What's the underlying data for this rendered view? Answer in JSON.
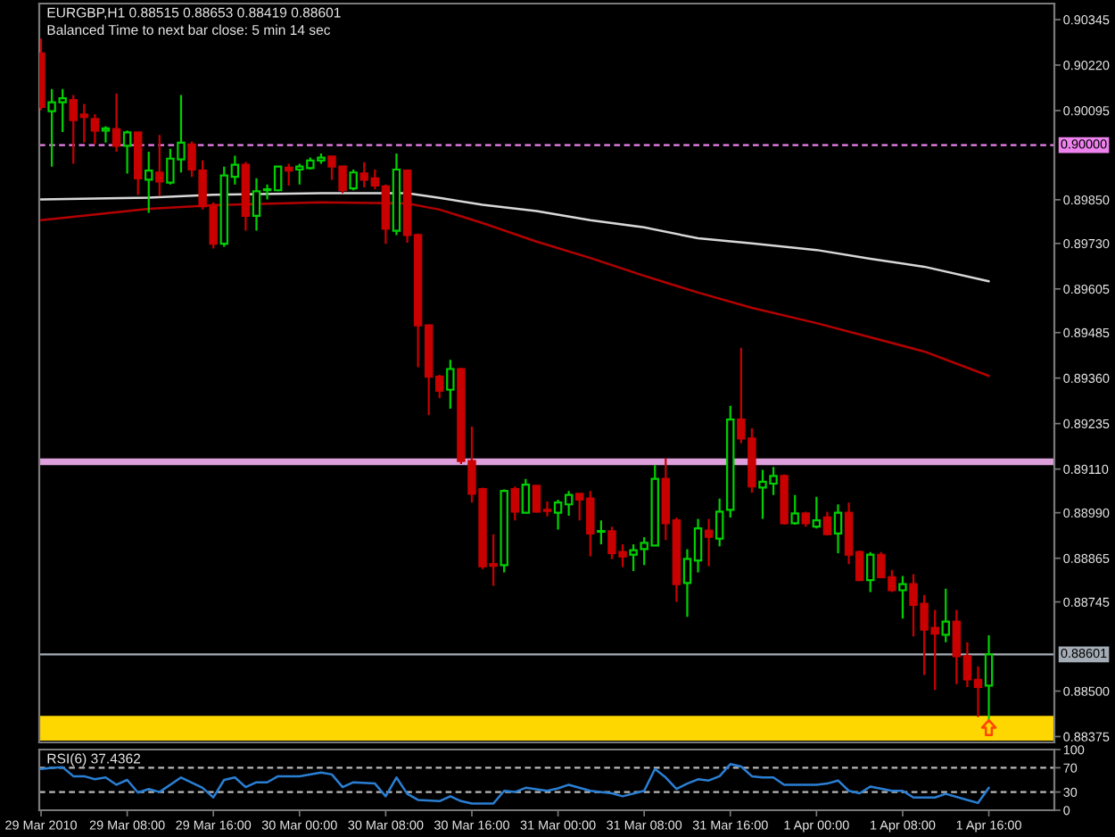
{
  "chart_data": [
    {
      "type": "candlestick",
      "title": "EURGBP,H1 0.88515 0.88653 0.88419 0.88601",
      "subtitle": "Balanced Time to next bar close: 5 min 14 sec",
      "x": [
        "2010-03-29T00:00",
        "2010-03-29T01:00",
        "2010-03-29T02:00",
        "2010-03-29T03:00",
        "2010-03-29T04:00",
        "2010-03-29T05:00",
        "2010-03-29T06:00",
        "2010-03-29T07:00",
        "2010-03-29T08:00",
        "2010-03-29T09:00",
        "2010-03-29T10:00",
        "2010-03-29T11:00",
        "2010-03-29T12:00",
        "2010-03-29T13:00",
        "2010-03-29T14:00",
        "2010-03-29T15:00",
        "2010-03-29T16:00",
        "2010-03-29T17:00",
        "2010-03-29T18:00",
        "2010-03-29T19:00",
        "2010-03-29T20:00",
        "2010-03-29T21:00",
        "2010-03-29T22:00",
        "2010-03-29T23:00",
        "2010-03-30T00:00",
        "2010-03-30T01:00",
        "2010-03-30T02:00",
        "2010-03-30T03:00",
        "2010-03-30T04:00",
        "2010-03-30T05:00",
        "2010-03-30T06:00",
        "2010-03-30T07:00",
        "2010-03-30T08:00",
        "2010-03-30T09:00",
        "2010-03-30T10:00",
        "2010-03-30T11:00",
        "2010-03-30T12:00",
        "2010-03-30T13:00",
        "2010-03-30T14:00",
        "2010-03-30T15:00",
        "2010-03-30T16:00",
        "2010-03-30T17:00",
        "2010-03-30T18:00",
        "2010-03-30T19:00",
        "2010-03-30T20:00",
        "2010-03-30T21:00",
        "2010-03-30T22:00",
        "2010-03-30T23:00",
        "2010-03-31T00:00",
        "2010-03-31T01:00",
        "2010-03-31T02:00",
        "2010-03-31T03:00",
        "2010-03-31T04:00",
        "2010-03-31T05:00",
        "2010-03-31T06:00",
        "2010-03-31T07:00",
        "2010-03-31T08:00",
        "2010-03-31T09:00",
        "2010-03-31T10:00",
        "2010-03-31T11:00",
        "2010-03-31T12:00",
        "2010-03-31T13:00",
        "2010-03-31T14:00",
        "2010-03-31T15:00",
        "2010-03-31T16:00",
        "2010-03-31T17:00",
        "2010-03-31T18:00",
        "2010-03-31T19:00",
        "2010-03-31T20:00",
        "2010-03-31T21:00",
        "2010-03-31T22:00",
        "2010-03-31T23:00",
        "2010-04-01T00:00",
        "2010-04-01T01:00",
        "2010-04-01T02:00",
        "2010-04-01T03:00",
        "2010-04-01T04:00",
        "2010-04-01T05:00",
        "2010-04-01T06:00",
        "2010-04-01T07:00",
        "2010-04-01T08:00",
        "2010-04-01T09:00",
        "2010-04-01T10:00",
        "2010-04-01T11:00",
        "2010-04-01T12:00",
        "2010-04-01T13:00",
        "2010-04-01T14:00",
        "2010-04-01T15:00",
        "2010-04-01T16:00"
      ],
      "ohlc": [
        [
          0.90252,
          0.90293,
          0.90096,
          0.90105
        ],
        [
          0.90093,
          0.90154,
          0.89941,
          0.90118
        ],
        [
          0.90118,
          0.90154,
          0.90036,
          0.90129
        ],
        [
          0.90124,
          0.90138,
          0.89949,
          0.90069
        ],
        [
          0.90084,
          0.90113,
          0.90007,
          0.90077
        ],
        [
          0.90072,
          0.90085,
          0.90003,
          0.9004
        ],
        [
          0.9004,
          0.90052,
          0.90007,
          0.90046
        ],
        [
          0.90044,
          0.90142,
          0.89982,
          0.89998
        ],
        [
          0.89998,
          0.9004,
          0.89922,
          0.90035
        ],
        [
          0.90035,
          0.90036,
          0.89863,
          0.89909
        ],
        [
          0.89905,
          0.89982,
          0.89814,
          0.8993
        ],
        [
          0.89925,
          0.90028,
          0.8986,
          0.899
        ],
        [
          0.89897,
          0.8999,
          0.89892,
          0.89963
        ],
        [
          0.89961,
          0.90138,
          0.89925,
          0.90007
        ],
        [
          0.90002,
          0.9001,
          0.89913,
          0.89933
        ],
        [
          0.8993,
          0.89958,
          0.89824,
          0.89832
        ],
        [
          0.89835,
          0.89843,
          0.89716,
          0.89729
        ],
        [
          0.89729,
          0.89941,
          0.89721,
          0.89917
        ],
        [
          0.89913,
          0.89971,
          0.89892,
          0.89946
        ],
        [
          0.89946,
          0.89954,
          0.89765,
          0.89806
        ],
        [
          0.89806,
          0.89909,
          0.89765,
          0.89873
        ],
        [
          0.89876,
          0.89892,
          0.89851,
          0.89879
        ],
        [
          0.89876,
          0.89941,
          0.89873,
          0.89941
        ],
        [
          0.89938,
          0.89949,
          0.89889,
          0.8993
        ],
        [
          0.89933,
          0.89949,
          0.89892,
          0.89941
        ],
        [
          0.89937,
          0.89966,
          0.89933,
          0.89958
        ],
        [
          0.89958,
          0.89977,
          0.89949,
          0.89966
        ],
        [
          0.89969,
          0.89971,
          0.89905,
          0.89941
        ],
        [
          0.89941,
          0.89944,
          0.89868,
          0.89876
        ],
        [
          0.89881,
          0.89933,
          0.89876,
          0.89925
        ],
        [
          0.89922,
          0.89953,
          0.89884,
          0.89905
        ],
        [
          0.89909,
          0.89933,
          0.89879,
          0.89889
        ],
        [
          0.89887,
          0.89892,
          0.89729,
          0.8977
        ],
        [
          0.89765,
          0.89977,
          0.89753,
          0.89933
        ],
        [
          0.8993,
          0.89933,
          0.89732,
          0.89753
        ],
        [
          0.89753,
          0.89757,
          0.8939,
          0.89505
        ],
        [
          0.89505,
          0.89508,
          0.89258,
          0.89364
        ],
        [
          0.89364,
          0.89369,
          0.89305,
          0.89325
        ],
        [
          0.89328,
          0.8941,
          0.89276,
          0.89385
        ],
        [
          0.89385,
          0.89389,
          0.89124,
          0.89132
        ],
        [
          0.89132,
          0.89227,
          0.89018,
          0.89042
        ],
        [
          0.89055,
          0.89059,
          0.88835,
          0.88843
        ],
        [
          0.88849,
          0.88931,
          0.88789,
          0.88844
        ],
        [
          0.88846,
          0.89054,
          0.88826,
          0.8905
        ],
        [
          0.89055,
          0.89062,
          0.88969,
          0.88993
        ],
        [
          0.8899,
          0.89083,
          0.8899,
          0.89067
        ],
        [
          0.89064,
          0.89067,
          0.8899,
          0.88993
        ],
        [
          0.88998,
          0.89021,
          0.8898,
          0.88995
        ],
        [
          0.8899,
          0.89026,
          0.88944,
          0.89018
        ],
        [
          0.89013,
          0.8905,
          0.88982,
          0.89039
        ],
        [
          0.89042,
          0.89045,
          0.88969,
          0.89026
        ],
        [
          0.89029,
          0.8905,
          0.8887,
          0.88933
        ],
        [
          0.88938,
          0.88969,
          0.88903,
          0.8894
        ],
        [
          0.88939,
          0.88952,
          0.88863,
          0.88879
        ],
        [
          0.88882,
          0.88903,
          0.88841,
          0.8887
        ],
        [
          0.88875,
          0.88903,
          0.8883,
          0.88887
        ],
        [
          0.8889,
          0.88923,
          0.88846,
          0.88907
        ],
        [
          0.889,
          0.89121,
          0.889,
          0.89083
        ],
        [
          0.89083,
          0.8914,
          0.88915,
          0.88961
        ],
        [
          0.88969,
          0.88977,
          0.88745,
          0.88794
        ],
        [
          0.88797,
          0.8889,
          0.88704,
          0.88863
        ],
        [
          0.88859,
          0.88973,
          0.88826,
          0.88947
        ],
        [
          0.88941,
          0.88973,
          0.88843,
          0.88924
        ],
        [
          0.88919,
          0.89029,
          0.88898,
          0.88993
        ],
        [
          0.88998,
          0.89284,
          0.88977,
          0.89246
        ],
        [
          0.89246,
          0.89443,
          0.89181,
          0.89194
        ],
        [
          0.89194,
          0.89222,
          0.89045,
          0.89062
        ],
        [
          0.89059,
          0.89108,
          0.88973,
          0.89075
        ],
        [
          0.8907,
          0.89116,
          0.89039,
          0.89091
        ],
        [
          0.89091,
          0.89095,
          0.88957,
          0.88961
        ],
        [
          0.88961,
          0.89039,
          0.88957,
          0.88988
        ],
        [
          0.88988,
          0.88993,
          0.88952,
          0.88961
        ],
        [
          0.88952,
          0.89034,
          0.88947,
          0.88969
        ],
        [
          0.88977,
          0.88993,
          0.88928,
          0.88931
        ],
        [
          0.88933,
          0.89013,
          0.88879,
          0.8899
        ],
        [
          0.8899,
          0.89018,
          0.88849,
          0.88875
        ],
        [
          0.88882,
          0.88887,
          0.88802,
          0.88805
        ],
        [
          0.88805,
          0.88882,
          0.88772,
          0.88875
        ],
        [
          0.88874,
          0.88882,
          0.8881,
          0.88813
        ],
        [
          0.88813,
          0.88833,
          0.88772,
          0.88777
        ],
        [
          0.88777,
          0.88816,
          0.88699,
          0.88794
        ],
        [
          0.88794,
          0.88821,
          0.8865,
          0.88737
        ],
        [
          0.8874,
          0.88764,
          0.88544,
          0.88669
        ],
        [
          0.88674,
          0.88723,
          0.88503,
          0.88658
        ],
        [
          0.88655,
          0.88781,
          0.88634,
          0.88691
        ],
        [
          0.88691,
          0.88723,
          0.88519,
          0.88596
        ],
        [
          0.88596,
          0.88634,
          0.88511,
          0.88532
        ],
        [
          0.88531,
          0.88568,
          0.88429,
          0.88511
        ],
        [
          0.88515,
          0.88653,
          0.88419,
          0.88601
        ]
      ],
      "colors": [
        "#c80000",
        "#00d000",
        "#00d000",
        "#c80000",
        "#c80000",
        "#c80000",
        "#00d000",
        "#c80000",
        "#00d000",
        "#c80000",
        "#00d000",
        "#c80000",
        "#00d000",
        "#00d000",
        "#c80000",
        "#c80000",
        "#c80000",
        "#00d000",
        "#00d000",
        "#c80000",
        "#00d000",
        "#00d000",
        "#00d000",
        "#c80000",
        "#00d000",
        "#00d000",
        "#00d000",
        "#c80000",
        "#c80000",
        "#00d000",
        "#c80000",
        "#c80000",
        "#c80000",
        "#00d000",
        "#c80000",
        "#c80000",
        "#c80000",
        "#c80000",
        "#00d000",
        "#c80000",
        "#c80000",
        "#c80000",
        "#c80000",
        "#00d000",
        "#c80000",
        "#00d000",
        "#c80000",
        "#c80000",
        "#00d000",
        "#00d000",
        "#c80000",
        "#c80000",
        "#00d000",
        "#c80000",
        "#c80000",
        "#00d000",
        "#00d000",
        "#00d000",
        "#c80000",
        "#c80000",
        "#00d000",
        "#00d000",
        "#c80000",
        "#00d000",
        "#00d000",
        "#c80000",
        "#c80000",
        "#00d000",
        "#00d000",
        "#c80000",
        "#00d000",
        "#c80000",
        "#00d000",
        "#c80000",
        "#00d000",
        "#c80000",
        "#c80000",
        "#00d000",
        "#c80000",
        "#c80000",
        "#00d000",
        "#c80000",
        "#c80000",
        "#c80000",
        "#00d000",
        "#c80000",
        "#c80000",
        "#c80000",
        "#00d000"
      ],
      "series": [
        {
          "type": "line",
          "color": "#d8d8d8",
          "x": [
            "2010-03-29T00:00",
            "2010-03-29T10:00",
            "2010-03-29T16:00",
            "2010-03-30T02:00",
            "2010-03-30T10:00",
            "2010-03-30T13:00",
            "2010-03-30T17:00",
            "2010-03-30T22:00",
            "2010-03-31T03:00",
            "2010-03-31T08:00",
            "2010-03-31T13:00",
            "2010-03-31T18:00",
            "2010-04-01T00:00",
            "2010-04-01T05:00",
            "2010-04-01T10:00",
            "2010-04-01T16:00"
          ],
          "values": [
            0.89851,
            0.89856,
            0.89864,
            0.89868,
            0.89868,
            0.89855,
            0.89836,
            0.89819,
            0.89794,
            0.89774,
            0.89744,
            0.8973,
            0.89712,
            0.89688,
            0.89666,
            0.89626
          ]
        },
        {
          "type": "line",
          "color": "#b40000",
          "x": [
            "2010-03-29T00:00",
            "2010-03-29T10:00",
            "2010-03-29T16:00",
            "2010-03-30T02:00",
            "2010-03-30T10:00",
            "2010-03-30T13:00",
            "2010-03-30T17:00",
            "2010-03-30T22:00",
            "2010-03-31T03:00",
            "2010-03-31T08:00",
            "2010-03-31T13:00",
            "2010-03-31T18:00",
            "2010-04-01T00:00",
            "2010-04-01T05:00",
            "2010-04-01T10:00",
            "2010-04-01T16:00"
          ],
          "values": [
            0.89794,
            0.89825,
            0.89835,
            0.89843,
            0.8984,
            0.89823,
            0.89786,
            0.89735,
            0.8969,
            0.89641,
            0.89595,
            0.89553,
            0.89511,
            0.89472,
            0.89433,
            0.89366
          ]
        }
      ],
      "xlim": [
        "2010-03-28T23:50",
        "2010-04-01T22:05"
      ],
      "ylim": [
        0.88359,
        0.90389
      ],
      "yticks": [
        0.90345,
        {
          "value": 0.9022,
          "label": "0.90220"
        },
        0.90095,
        {
          "value": 0.8985,
          "label": "0.89850"
        },
        {
          "value": 0.8973,
          "label": "0.89730"
        },
        0.89605,
        0.89485,
        {
          "value": 0.8936,
          "label": "0.89360"
        },
        0.89235,
        {
          "value": 0.8911,
          "label": "0.89110"
        },
        {
          "value": 0.8899,
          "label": "0.88990"
        },
        0.88865,
        0.88745,
        {
          "value": 0.885,
          "label": "0.88500"
        },
        0.88375
      ],
      "ref_lines": [
        {
          "axis": "y",
          "value": 0.9,
          "label": "0.90000",
          "color": "#ee82ee",
          "line_style": "dashed"
        },
        {
          "axis": "y",
          "value": 0.88601,
          "label": "0.88601",
          "color": "#a4adb6",
          "line_style": "solid"
        }
      ],
      "bands": [
        {
          "axis": "y",
          "from": 0.89121,
          "to": 0.89139,
          "color": "#dda0dd"
        },
        {
          "axis": "y",
          "from": 0.88364,
          "to": 0.88432,
          "color": "#ffd700"
        }
      ],
      "tick_labels": "y"
    },
    {
      "type": "line",
      "title": "RSI(6) 37.4362",
      "color": "#2a7fd4",
      "x": [
        "2010-03-29T00:00",
        "2010-03-29T01:00",
        "2010-03-29T02:00",
        "2010-03-29T03:00",
        "2010-03-29T04:00",
        "2010-03-29T05:00",
        "2010-03-29T06:00",
        "2010-03-29T07:00",
        "2010-03-29T08:00",
        "2010-03-29T09:00",
        "2010-03-29T10:00",
        "2010-03-29T11:00",
        "2010-03-29T13:00",
        "2010-03-29T15:00",
        "2010-03-29T16:00",
        "2010-03-29T17:00",
        "2010-03-29T18:00",
        "2010-03-29T19:00",
        "2010-03-29T20:00",
        "2010-03-29T21:00",
        "2010-03-29T22:00",
        "2010-03-30T00:00",
        "2010-03-30T02:00",
        "2010-03-30T03:00",
        "2010-03-30T04:00",
        "2010-03-30T05:00",
        "2010-03-30T07:00",
        "2010-03-30T08:00",
        "2010-03-30T09:00",
        "2010-03-30T10:00",
        "2010-03-30T11:00",
        "2010-03-30T13:00",
        "2010-03-30T14:00",
        "2010-03-30T15:00",
        "2010-03-30T16:00",
        "2010-03-30T18:00",
        "2010-03-30T19:00",
        "2010-03-30T20:00",
        "2010-03-30T21:00",
        "2010-03-30T23:00",
        "2010-03-31T00:00",
        "2010-03-31T01:00",
        "2010-03-31T03:00",
        "2010-03-31T05:00",
        "2010-03-31T06:00",
        "2010-03-31T08:00",
        "2010-03-31T09:00",
        "2010-03-31T10:00",
        "2010-03-31T11:00",
        "2010-03-31T12:00",
        "2010-03-31T13:00",
        "2010-03-31T14:00",
        "2010-03-31T15:00",
        "2010-03-31T16:00",
        "2010-03-31T17:00",
        "2010-03-31T18:00",
        "2010-03-31T19:00",
        "2010-03-31T20:00",
        "2010-03-31T21:00",
        "2010-03-31T23:00",
        "2010-04-01T00:00",
        "2010-04-01T01:00",
        "2010-04-01T02:00",
        "2010-04-01T03:00",
        "2010-04-01T04:00",
        "2010-04-01T05:00",
        "2010-04-01T07:00",
        "2010-04-01T08:00",
        "2010-04-01T09:00",
        "2010-04-01T11:00",
        "2010-04-01T12:00",
        "2010-04-01T14:00",
        "2010-04-01T15:00",
        "2010-04-01T16:00"
      ],
      "values": [
        68,
        70,
        71,
        56,
        56,
        51,
        54,
        42,
        50,
        29,
        35,
        30,
        54,
        37,
        21,
        50,
        54,
        38,
        46,
        46,
        56,
        56,
        62,
        59,
        38,
        46,
        44,
        23,
        54,
        27,
        17,
        15,
        23,
        15,
        11,
        11,
        32,
        30,
        37,
        32,
        36,
        42,
        32,
        28,
        23,
        32,
        68,
        54,
        35,
        44,
        51,
        49,
        56,
        76,
        72,
        56,
        54,
        54,
        42,
        42,
        42,
        44,
        49,
        32,
        28,
        39,
        32,
        32,
        21,
        21,
        27,
        17,
        12,
        37
      ],
      "xlim": [
        "2010-03-28T23:50",
        "2010-04-01T22:05"
      ],
      "xticks": [
        {
          "value": "2010-03-29T00:00",
          "label": "29 Mar 2010"
        },
        {
          "value": "2010-03-29T08:00",
          "label": "29 Mar 08:00"
        },
        {
          "value": "2010-03-29T16:00",
          "label": "29 Mar 16:00"
        },
        {
          "value": "2010-03-30T00:00",
          "label": "30 Mar 00:00"
        },
        {
          "value": "2010-03-30T08:00",
          "label": "30 Mar 08:00"
        },
        {
          "value": "2010-03-30T16:00",
          "label": "30 Mar 16:00"
        },
        {
          "value": "2010-03-31T00:00",
          "label": "31 Mar 00:00"
        },
        {
          "value": "2010-03-31T08:00",
          "label": "31 Mar 08:00"
        },
        {
          "value": "2010-03-31T16:00",
          "label": "31 Mar 16:00"
        },
        {
          "value": "2010-04-01T00:00",
          "label": "1 Apr 00:00"
        },
        {
          "value": "2010-04-01T08:00",
          "label": "1 Apr 08:00"
        },
        {
          "value": "2010-04-01T16:00",
          "label": "1 Apr 16:00"
        }
      ],
      "ylim": [
        0,
        100
      ],
      "yticks": [
        100,
        70,
        30,
        0
      ],
      "ref_lines": [
        {
          "axis": "y",
          "value": 70,
          "color": "#b8b8b8",
          "line_style": "dashed"
        },
        {
          "axis": "y",
          "value": 30,
          "color": "#b8b8b8",
          "line_style": "dashed"
        }
      ]
    }
  ]
}
